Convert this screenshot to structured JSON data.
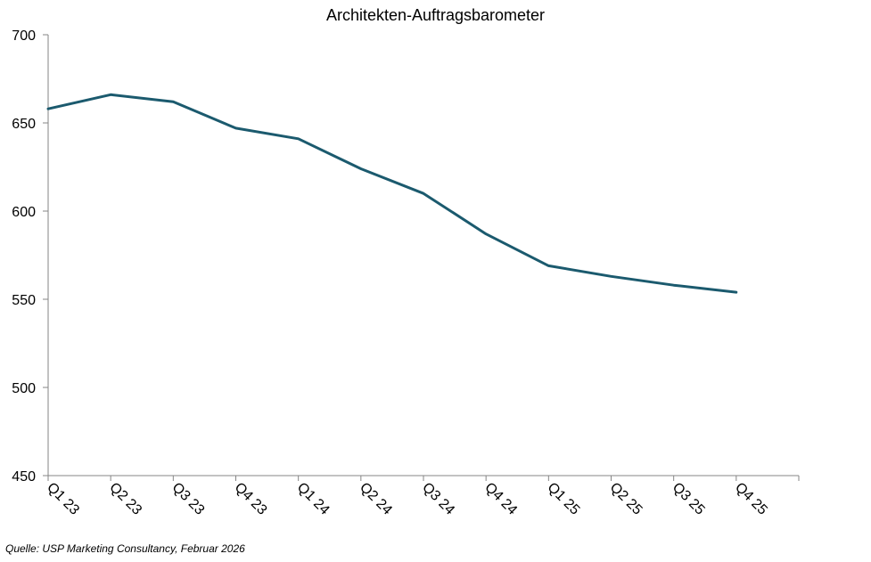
{
  "chart_data": {
    "type": "line",
    "title": "Architekten-Auftragsbarometer",
    "categories": [
      "Q1 23",
      "Q2 23",
      "Q3 23",
      "Q4 23",
      "Q1 24",
      "Q2 24",
      "Q3 24",
      "Q4 24",
      "Q1 25",
      "Q2 25",
      "Q3 25",
      "Q4 25"
    ],
    "series": [
      {
        "values": [
          658,
          666,
          662,
          647,
          641,
          624,
          610,
          587,
          569,
          563,
          558,
          554
        ]
      }
    ],
    "ylim": [
      450,
      700
    ],
    "yticks": [
      450,
      500,
      550,
      600,
      650,
      700
    ],
    "xlabel": "",
    "ylabel": "",
    "grid": false,
    "line_color": "#1b5a6e"
  },
  "source": "Quelle: USP Marketing Consultancy,  Februar 2026"
}
